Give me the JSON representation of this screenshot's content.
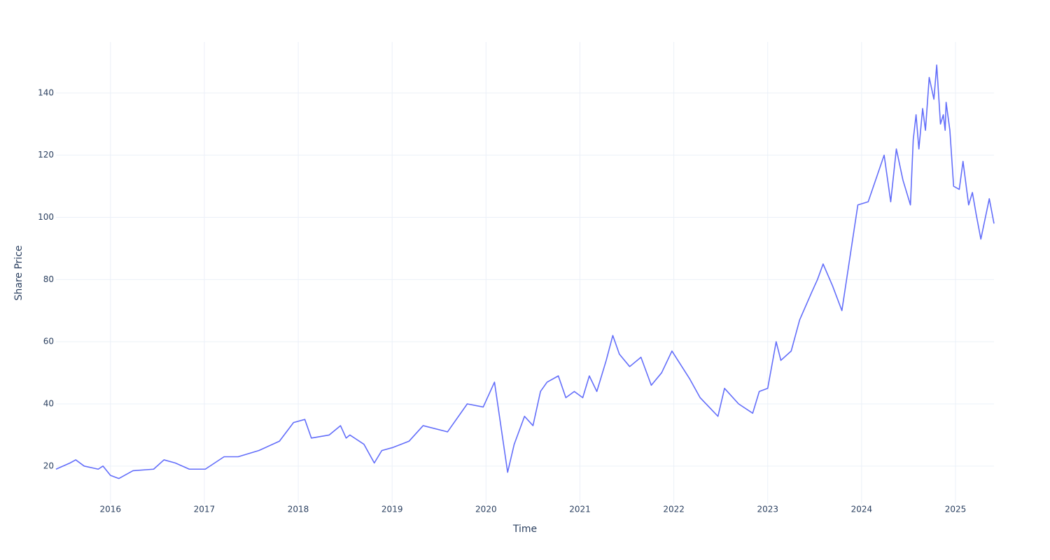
{
  "chart_data": {
    "type": "line",
    "x_label": "Time",
    "y_label": "Share Price",
    "color": "#636efa",
    "grid": true,
    "xlim": [
      2015.42,
      2025.41
    ],
    "ylim": [
      7.8,
      156.4
    ],
    "xticks": [
      2016,
      2017,
      2018,
      2019,
      2020,
      2021,
      2022,
      2023,
      2024,
      2025
    ],
    "yticks": [
      20,
      40,
      60,
      80,
      100,
      120,
      140
    ],
    "x": [
      2015.42,
      2015.57,
      2015.63,
      2015.72,
      2015.87,
      2015.92,
      2016.0,
      2016.09,
      2016.24,
      2016.46,
      2016.57,
      2016.69,
      2016.84,
      2017.01,
      2017.21,
      2017.36,
      2017.58,
      2017.8,
      2017.95,
      2018.07,
      2018.14,
      2018.33,
      2018.45,
      2018.51,
      2018.55,
      2018.7,
      2018.81,
      2018.89,
      2019.01,
      2019.18,
      2019.33,
      2019.59,
      2019.8,
      2019.97,
      2020.09,
      2020.23,
      2020.3,
      2020.41,
      2020.5,
      2020.58,
      2020.65,
      2020.77,
      2020.85,
      2020.94,
      2021.03,
      2021.1,
      2021.18,
      2021.28,
      2021.35,
      2021.42,
      2021.53,
      2021.65,
      2021.76,
      2021.87,
      2021.98,
      2022.17,
      2022.28,
      2022.47,
      2022.54,
      2022.69,
      2022.84,
      2022.91,
      2023.0,
      2023.09,
      2023.14,
      2023.25,
      2023.34,
      2023.47,
      2023.53,
      2023.59,
      2023.69,
      2023.79,
      2023.88,
      2023.96,
      2024.07,
      2024.24,
      2024.31,
      2024.37,
      2024.44,
      2024.52,
      2024.55,
      2024.58,
      2024.61,
      2024.65,
      2024.68,
      2024.72,
      2024.77,
      2024.8,
      2024.84,
      2024.87,
      2024.89,
      2024.9,
      2024.94,
      2024.98,
      2025.04,
      2025.08,
      2025.14,
      2025.18,
      2025.22,
      2025.27,
      2025.36,
      2025.41
    ],
    "values": [
      19,
      21,
      22,
      20,
      19,
      20,
      17,
      16,
      18.5,
      19,
      22,
      21,
      19,
      19,
      23,
      23,
      25,
      28,
      34,
      35,
      29,
      30,
      33,
      29,
      30,
      27,
      21,
      25,
      26,
      28,
      33,
      31,
      40,
      39,
      47,
      18,
      27,
      36,
      33,
      44,
      47,
      49,
      42,
      44,
      42,
      49,
      44,
      54,
      62,
      56,
      52,
      55,
      46,
      50,
      57,
      48,
      42,
      36,
      45,
      40,
      37,
      44,
      45,
      60,
      54,
      57,
      67,
      76,
      80,
      85,
      78,
      70,
      88,
      104,
      105,
      120,
      105,
      122,
      112,
      104,
      125,
      133,
      122,
      135,
      128,
      145,
      138,
      149,
      130,
      133,
      128,
      137,
      128,
      110,
      109,
      118,
      104,
      108,
      101,
      93,
      106,
      98
    ]
  }
}
